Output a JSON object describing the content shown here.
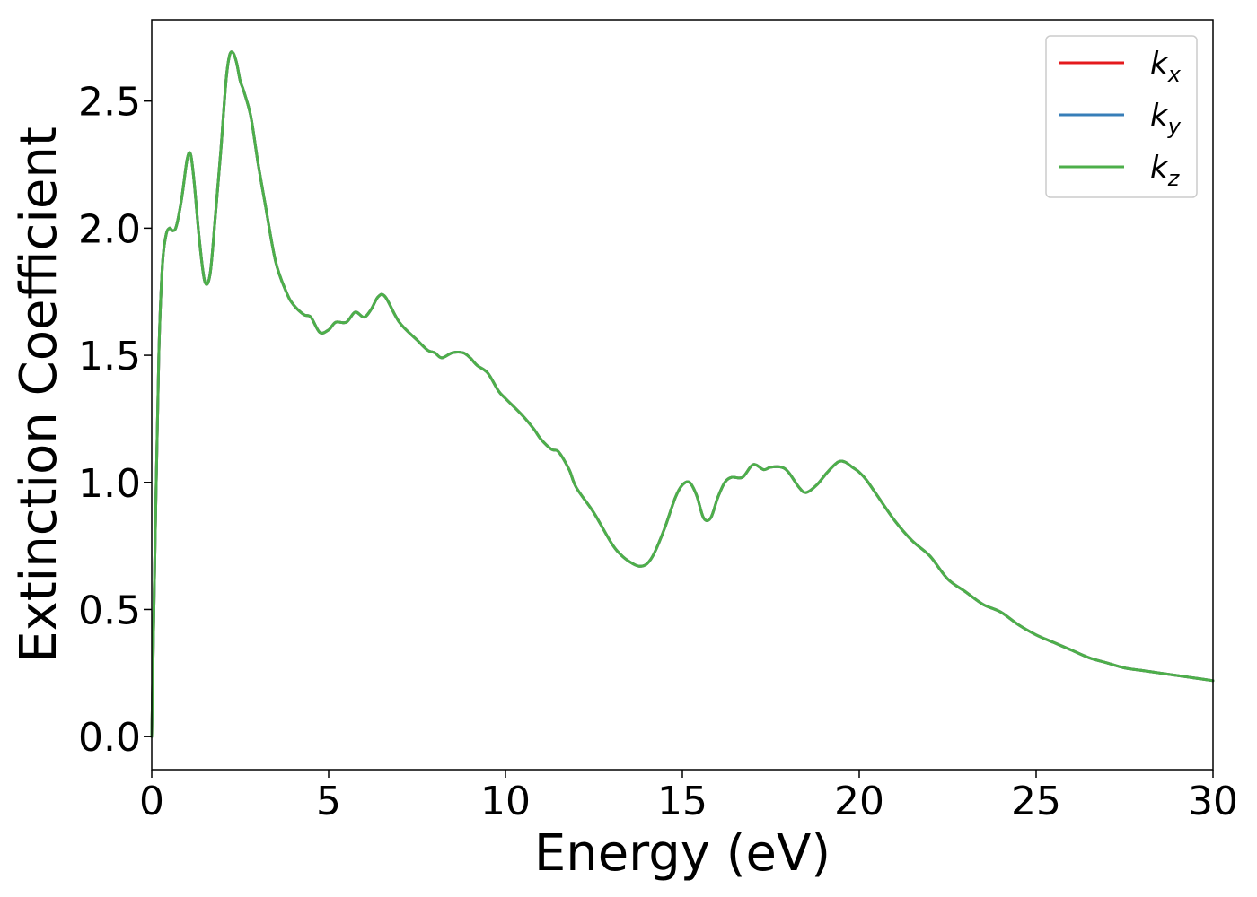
{
  "chart_data": {
    "type": "line",
    "title": "",
    "xlabel": "Energy (eV)",
    "ylabel": "Extinction Coefficient",
    "xlim": [
      0,
      30
    ],
    "ylim": [
      -0.13,
      2.82
    ],
    "xticks": [
      0,
      5,
      10,
      15,
      20,
      25,
      30
    ],
    "xtick_labels": [
      "0",
      "5",
      "10",
      "15",
      "20",
      "25",
      "30"
    ],
    "yticks": [
      0.0,
      0.5,
      1.0,
      1.5,
      2.0,
      2.5
    ],
    "ytick_labels": [
      "0.0",
      "0.5",
      "1.0",
      "1.5",
      "2.0",
      "2.5"
    ],
    "grid": false,
    "legend_position": "top-right",
    "x": [
      0,
      0.1,
      0.2,
      0.3,
      0.4,
      0.5,
      0.6,
      0.7,
      0.85,
      1.0,
      1.1,
      1.2,
      1.35,
      1.5,
      1.65,
      1.8,
      1.95,
      2.1,
      2.2,
      2.3,
      2.4,
      2.5,
      2.6,
      2.8,
      3.0,
      3.2,
      3.5,
      3.8,
      4.0,
      4.3,
      4.5,
      4.75,
      5.0,
      5.2,
      5.5,
      5.75,
      6.0,
      6.2,
      6.4,
      6.6,
      7.0,
      7.5,
      7.8,
      8.0,
      8.2,
      8.5,
      8.8,
      9.0,
      9.2,
      9.5,
      9.8,
      10.0,
      10.5,
      10.8,
      11.0,
      11.3,
      11.5,
      11.8,
      12.0,
      12.5,
      13.0,
      13.3,
      13.6,
      13.8,
      14.0,
      14.2,
      14.5,
      14.8,
      15.0,
      15.2,
      15.4,
      15.6,
      15.8,
      16.0,
      16.2,
      16.4,
      16.7,
      17.0,
      17.3,
      17.5,
      17.8,
      18.0,
      18.3,
      18.5,
      18.8,
      19.1,
      19.4,
      19.6,
      19.8,
      20.0,
      20.2,
      20.5,
      21.0,
      21.5,
      22.0,
      22.5,
      23.0,
      23.5,
      24.0,
      24.5,
      25.0,
      25.5,
      26.0,
      26.5,
      27.0,
      27.5,
      28.0,
      28.5,
      29.0,
      29.5,
      30.0
    ],
    "series": [
      {
        "name": "k_x",
        "label_main": "k",
        "label_sub": "x",
        "color": "#e41a1c",
        "values": [
          0.0,
          0.8,
          1.5,
          1.85,
          1.97,
          2.0,
          1.99,
          2.01,
          2.12,
          2.27,
          2.29,
          2.18,
          1.95,
          1.79,
          1.82,
          2.05,
          2.3,
          2.58,
          2.68,
          2.69,
          2.65,
          2.58,
          2.54,
          2.44,
          2.26,
          2.1,
          1.87,
          1.75,
          1.7,
          1.66,
          1.65,
          1.59,
          1.6,
          1.63,
          1.63,
          1.67,
          1.65,
          1.68,
          1.73,
          1.73,
          1.63,
          1.56,
          1.52,
          1.51,
          1.49,
          1.51,
          1.51,
          1.49,
          1.46,
          1.43,
          1.36,
          1.33,
          1.26,
          1.21,
          1.17,
          1.13,
          1.12,
          1.05,
          0.98,
          0.88,
          0.76,
          0.71,
          0.68,
          0.67,
          0.68,
          0.72,
          0.82,
          0.94,
          0.99,
          1.0,
          0.95,
          0.86,
          0.86,
          0.94,
          1.0,
          1.02,
          1.02,
          1.07,
          1.05,
          1.06,
          1.06,
          1.04,
          0.98,
          0.96,
          0.99,
          1.04,
          1.08,
          1.08,
          1.06,
          1.04,
          1.01,
          0.95,
          0.85,
          0.77,
          0.71,
          0.62,
          0.57,
          0.52,
          0.49,
          0.44,
          0.4,
          0.37,
          0.34,
          0.31,
          0.29,
          0.27,
          0.26,
          0.25,
          0.24,
          0.23,
          0.22
        ]
      },
      {
        "name": "k_y",
        "label_main": "k",
        "label_sub": "y",
        "color": "#377eb8",
        "values": [
          0.0,
          0.8,
          1.5,
          1.85,
          1.97,
          2.0,
          1.99,
          2.01,
          2.12,
          2.27,
          2.29,
          2.18,
          1.95,
          1.79,
          1.82,
          2.05,
          2.3,
          2.58,
          2.68,
          2.69,
          2.65,
          2.58,
          2.54,
          2.44,
          2.26,
          2.1,
          1.87,
          1.75,
          1.7,
          1.66,
          1.65,
          1.59,
          1.6,
          1.63,
          1.63,
          1.67,
          1.65,
          1.68,
          1.73,
          1.73,
          1.63,
          1.56,
          1.52,
          1.51,
          1.49,
          1.51,
          1.51,
          1.49,
          1.46,
          1.43,
          1.36,
          1.33,
          1.26,
          1.21,
          1.17,
          1.13,
          1.12,
          1.05,
          0.98,
          0.88,
          0.76,
          0.71,
          0.68,
          0.67,
          0.68,
          0.72,
          0.82,
          0.94,
          0.99,
          1.0,
          0.95,
          0.86,
          0.86,
          0.94,
          1.0,
          1.02,
          1.02,
          1.07,
          1.05,
          1.06,
          1.06,
          1.04,
          0.98,
          0.96,
          0.99,
          1.04,
          1.08,
          1.08,
          1.06,
          1.04,
          1.01,
          0.95,
          0.85,
          0.77,
          0.71,
          0.62,
          0.57,
          0.52,
          0.49,
          0.44,
          0.4,
          0.37,
          0.34,
          0.31,
          0.29,
          0.27,
          0.26,
          0.25,
          0.24,
          0.23,
          0.22
        ]
      },
      {
        "name": "k_z",
        "label_main": "k",
        "label_sub": "z",
        "color": "#4daf4a",
        "values": [
          0.0,
          0.8,
          1.5,
          1.85,
          1.97,
          2.0,
          1.99,
          2.01,
          2.12,
          2.27,
          2.29,
          2.18,
          1.95,
          1.79,
          1.82,
          2.05,
          2.3,
          2.58,
          2.68,
          2.69,
          2.65,
          2.58,
          2.54,
          2.44,
          2.26,
          2.1,
          1.87,
          1.75,
          1.7,
          1.66,
          1.65,
          1.59,
          1.6,
          1.63,
          1.63,
          1.67,
          1.65,
          1.68,
          1.73,
          1.73,
          1.63,
          1.56,
          1.52,
          1.51,
          1.49,
          1.51,
          1.51,
          1.49,
          1.46,
          1.43,
          1.36,
          1.33,
          1.26,
          1.21,
          1.17,
          1.13,
          1.12,
          1.05,
          0.98,
          0.88,
          0.76,
          0.71,
          0.68,
          0.67,
          0.68,
          0.72,
          0.82,
          0.94,
          0.99,
          1.0,
          0.95,
          0.86,
          0.86,
          0.94,
          1.0,
          1.02,
          1.02,
          1.07,
          1.05,
          1.06,
          1.06,
          1.04,
          0.98,
          0.96,
          0.99,
          1.04,
          1.08,
          1.08,
          1.06,
          1.04,
          1.01,
          0.95,
          0.85,
          0.77,
          0.71,
          0.62,
          0.57,
          0.52,
          0.49,
          0.44,
          0.4,
          0.37,
          0.34,
          0.31,
          0.29,
          0.27,
          0.26,
          0.25,
          0.24,
          0.23,
          0.22
        ]
      }
    ]
  }
}
